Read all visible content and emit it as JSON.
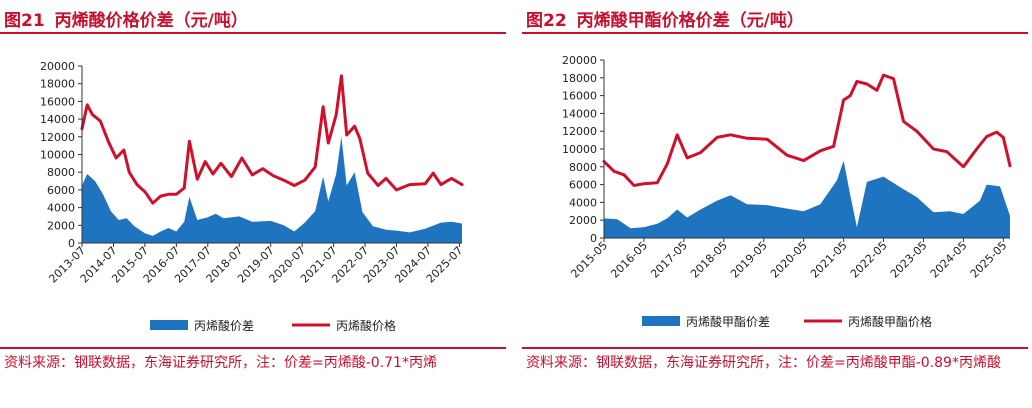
{
  "colors": {
    "accent": "#c8102e",
    "area": "#1f74c0",
    "line": "#d0102a"
  },
  "chart_data": [
    {
      "type": "area+line",
      "figure_number": "图21",
      "title": "丙烯酸价格价差（元/吨）",
      "source_note": "资料来源：钢联数据，东海证券研究所，注：价差=丙烯酸-0.71*丙烯",
      "x_start": "2013-07",
      "x_end": "2025-08",
      "xticks": [
        "2013-07",
        "2014-07",
        "2015-07",
        "2016-07",
        "2017-07",
        "2018-07",
        "2019-07",
        "2020-07",
        "2021-07",
        "2022-07",
        "2023-07",
        "2024-07",
        "2025-07"
      ],
      "ylim": [
        0,
        20000
      ],
      "yticks": [
        0,
        2000,
        4000,
        6000,
        8000,
        10000,
        12000,
        14000,
        16000,
        18000,
        20000
      ],
      "legend": [
        "丙烯酸价差",
        "丙烯酸价格"
      ],
      "series": [
        {
          "name": "丙烯酸价差",
          "kind": "area",
          "points": [
            [
              "2013-07",
              6500
            ],
            [
              "2013-09",
              7800
            ],
            [
              "2013-12",
              7000
            ],
            [
              "2014-03",
              5500
            ],
            [
              "2014-06",
              3600
            ],
            [
              "2014-09",
              2600
            ],
            [
              "2014-12",
              2800
            ],
            [
              "2015-03",
              1900
            ],
            [
              "2015-07",
              1100
            ],
            [
              "2015-10",
              800
            ],
            [
              "2016-01",
              1300
            ],
            [
              "2016-04",
              1700
            ],
            [
              "2016-07",
              1300
            ],
            [
              "2016-10",
              2400
            ],
            [
              "2016-12",
              5200
            ],
            [
              "2017-03",
              2600
            ],
            [
              "2017-07",
              2900
            ],
            [
              "2017-10",
              3300
            ],
            [
              "2018-01",
              2800
            ],
            [
              "2018-07",
              3000
            ],
            [
              "2018-12",
              2400
            ],
            [
              "2019-07",
              2500
            ],
            [
              "2019-12",
              2000
            ],
            [
              "2020-04",
              1300
            ],
            [
              "2020-08",
              2300
            ],
            [
              "2020-12",
              3600
            ],
            [
              "2021-03",
              7500
            ],
            [
              "2021-05",
              4700
            ],
            [
              "2021-08",
              7800
            ],
            [
              "2021-10",
              12000
            ],
            [
              "2021-12",
              6500
            ],
            [
              "2022-03",
              8000
            ],
            [
              "2022-06",
              3500
            ],
            [
              "2022-10",
              1900
            ],
            [
              "2023-03",
              1500
            ],
            [
              "2023-07",
              1400
            ],
            [
              "2023-12",
              1200
            ],
            [
              "2024-06",
              1600
            ],
            [
              "2024-12",
              2300
            ],
            [
              "2025-04",
              2400
            ],
            [
              "2025-08",
              2200
            ]
          ]
        },
        {
          "name": "丙烯酸价格",
          "kind": "line",
          "points": [
            [
              "2013-07",
              12900
            ],
            [
              "2013-09",
              15600
            ],
            [
              "2013-11",
              14500
            ],
            [
              "2014-02",
              13800
            ],
            [
              "2014-05",
              11500
            ],
            [
              "2014-08",
              9600
            ],
            [
              "2014-11",
              10500
            ],
            [
              "2015-01",
              8000
            ],
            [
              "2015-04",
              6600
            ],
            [
              "2015-07",
              5800
            ],
            [
              "2015-10",
              4500
            ],
            [
              "2016-01",
              5300
            ],
            [
              "2016-04",
              5500
            ],
            [
              "2016-07",
              5500
            ],
            [
              "2016-10",
              6200
            ],
            [
              "2016-12",
              11500
            ],
            [
              "2017-03",
              7200
            ],
            [
              "2017-06",
              9200
            ],
            [
              "2017-09",
              7800
            ],
            [
              "2017-12",
              9000
            ],
            [
              "2018-04",
              7500
            ],
            [
              "2018-08",
              9600
            ],
            [
              "2018-12",
              7700
            ],
            [
              "2019-04",
              8400
            ],
            [
              "2019-08",
              7600
            ],
            [
              "2019-12",
              7100
            ],
            [
              "2020-04",
              6500
            ],
            [
              "2020-08",
              7100
            ],
            [
              "2020-12",
              8600
            ],
            [
              "2021-03",
              15400
            ],
            [
              "2021-05",
              11300
            ],
            [
              "2021-08",
              14500
            ],
            [
              "2021-10",
              18900
            ],
            [
              "2021-12",
              12200
            ],
            [
              "2022-03",
              13200
            ],
            [
              "2022-05",
              11800
            ],
            [
              "2022-08",
              7900
            ],
            [
              "2022-12",
              6500
            ],
            [
              "2023-03",
              7300
            ],
            [
              "2023-07",
              6000
            ],
            [
              "2023-12",
              6600
            ],
            [
              "2024-06",
              6700
            ],
            [
              "2024-09",
              7900
            ],
            [
              "2024-12",
              6600
            ],
            [
              "2025-04",
              7300
            ],
            [
              "2025-08",
              6600
            ]
          ]
        }
      ]
    },
    {
      "type": "area+line",
      "figure_number": "图22",
      "title": "丙烯酸甲酯价格价差（元/吨）",
      "source_note": "资料来源：钢联数据，东海证券研究所，注：价差=丙烯酸甲酯-0.89*丙烯酸",
      "x_start": "2015-05",
      "x_end": "2025-07",
      "xticks": [
        "2015-05",
        "2016-05",
        "2017-05",
        "2018-05",
        "2019-05",
        "2020-05",
        "2021-05",
        "2022-05",
        "2023-05",
        "2024-05",
        "2025-05"
      ],
      "ylim": [
        0,
        20000
      ],
      "yticks": [
        0,
        2000,
        4000,
        6000,
        8000,
        10000,
        12000,
        14000,
        16000,
        18000,
        20000
      ],
      "legend": [
        "丙烯酸甲酯价差",
        "丙烯酸甲酯价格"
      ],
      "series": [
        {
          "name": "丙烯酸甲酯价差",
          "kind": "area",
          "points": [
            [
              "2015-05",
              2200
            ],
            [
              "2015-09",
              2100
            ],
            [
              "2016-01",
              1100
            ],
            [
              "2016-05",
              1200
            ],
            [
              "2016-09",
              1600
            ],
            [
              "2016-12",
              2200
            ],
            [
              "2017-03",
              3200
            ],
            [
              "2017-06",
              2300
            ],
            [
              "2017-10",
              3200
            ],
            [
              "2018-03",
              4200
            ],
            [
              "2018-07",
              4800
            ],
            [
              "2018-12",
              3800
            ],
            [
              "2019-06",
              3700
            ],
            [
              "2019-12",
              3300
            ],
            [
              "2020-05",
              3000
            ],
            [
              "2020-10",
              3800
            ],
            [
              "2021-03",
              6500
            ],
            [
              "2021-05",
              8700
            ],
            [
              "2021-07",
              4800
            ],
            [
              "2021-09",
              1200
            ],
            [
              "2021-12",
              6300
            ],
            [
              "2022-05",
              6900
            ],
            [
              "2022-10",
              5700
            ],
            [
              "2023-03",
              4600
            ],
            [
              "2023-08",
              2900
            ],
            [
              "2024-01",
              3000
            ],
            [
              "2024-05",
              2700
            ],
            [
              "2024-10",
              4200
            ],
            [
              "2024-12",
              6000
            ],
            [
              "2025-04",
              5800
            ],
            [
              "2025-07",
              2500
            ]
          ]
        },
        {
          "name": "丙烯酸甲酯价格",
          "kind": "line",
          "points": [
            [
              "2015-05",
              8600
            ],
            [
              "2015-08",
              7500
            ],
            [
              "2015-11",
              7100
            ],
            [
              "2016-02",
              5900
            ],
            [
              "2016-05",
              6100
            ],
            [
              "2016-09",
              6200
            ],
            [
              "2016-12",
              8300
            ],
            [
              "2017-03",
              11600
            ],
            [
              "2017-06",
              9000
            ],
            [
              "2017-10",
              9600
            ],
            [
              "2018-03",
              11300
            ],
            [
              "2018-07",
              11600
            ],
            [
              "2018-12",
              11200
            ],
            [
              "2019-06",
              11100
            ],
            [
              "2019-12",
              9300
            ],
            [
              "2020-05",
              8700
            ],
            [
              "2020-10",
              9800
            ],
            [
              "2021-02",
              10300
            ],
            [
              "2021-05",
              15500
            ],
            [
              "2021-07",
              16000
            ],
            [
              "2021-09",
              17600
            ],
            [
              "2021-12",
              17300
            ],
            [
              "2022-03",
              16600
            ],
            [
              "2022-05",
              18300
            ],
            [
              "2022-08",
              17900
            ],
            [
              "2022-11",
              13100
            ],
            [
              "2023-03",
              12000
            ],
            [
              "2023-08",
              10000
            ],
            [
              "2023-12",
              9700
            ],
            [
              "2024-05",
              8000
            ],
            [
              "2024-09",
              10000
            ],
            [
              "2024-12",
              11400
            ],
            [
              "2025-03",
              11900
            ],
            [
              "2025-05",
              11300
            ],
            [
              "2025-07",
              8100
            ]
          ]
        }
      ]
    }
  ]
}
